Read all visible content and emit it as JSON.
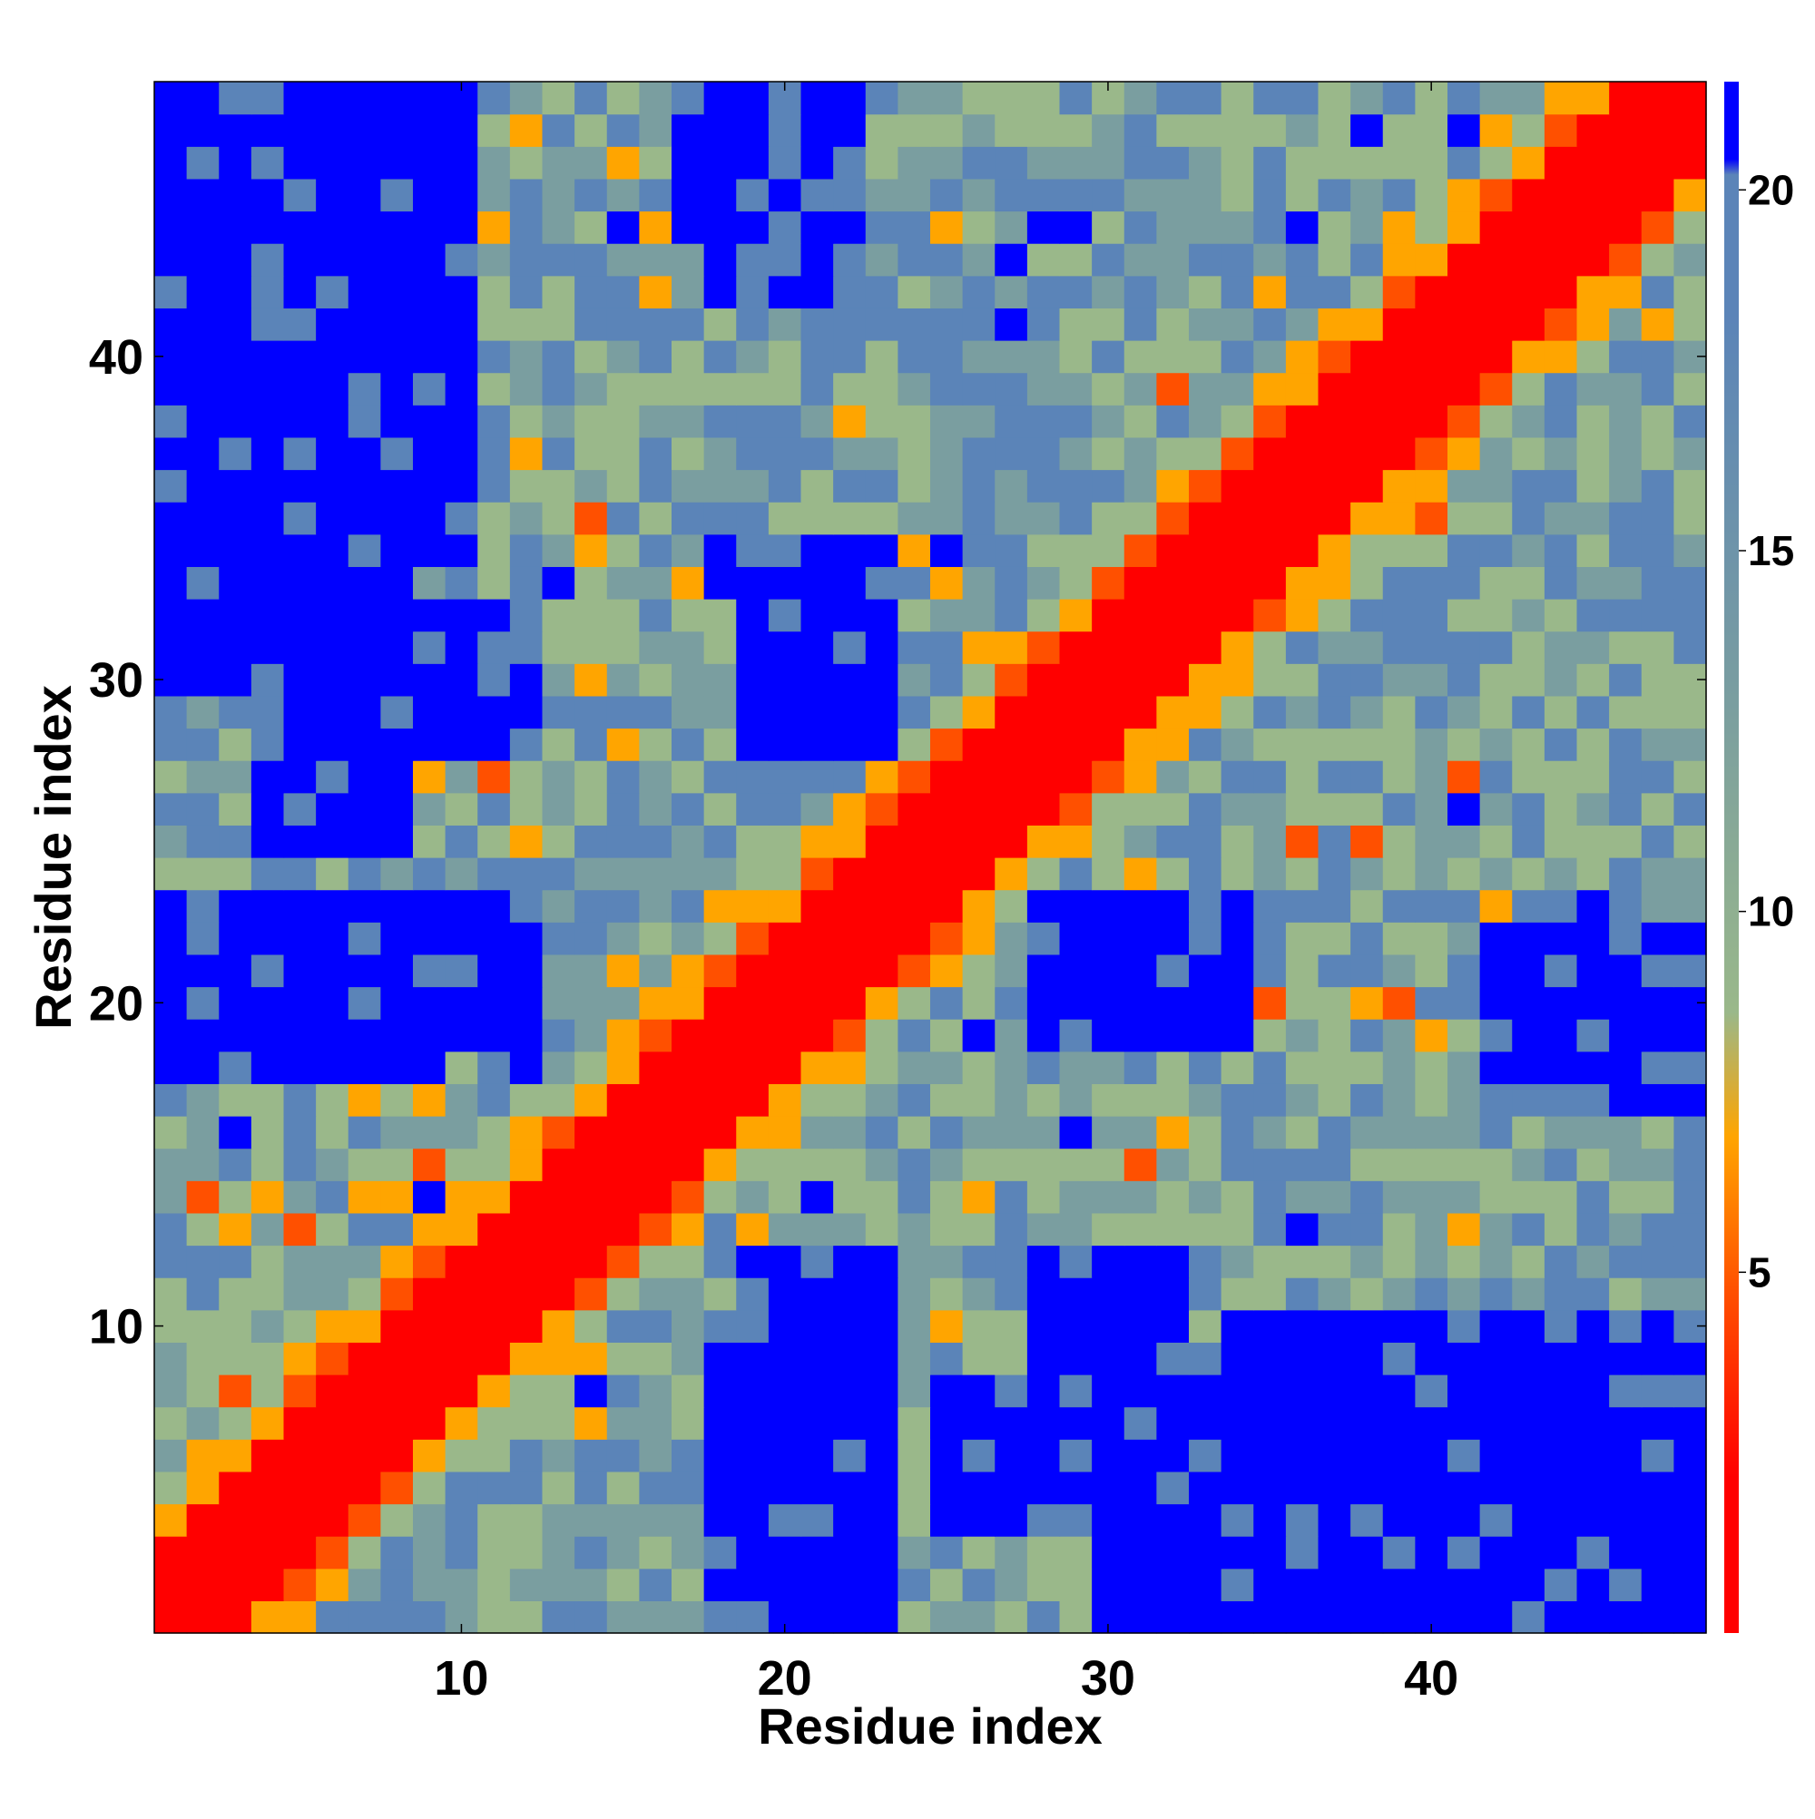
{
  "chart_data": {
    "type": "heatmap",
    "description_free": true,
    "xlabel": "Residue index",
    "ylabel": "Residue index",
    "x_range": [
      1,
      48
    ],
    "y_range": [
      1,
      48
    ],
    "x_ticks": [
      10,
      20,
      30,
      40
    ],
    "y_ticks": [
      10,
      20,
      30,
      40
    ],
    "colorbar": {
      "ticks": [
        5,
        10,
        15,
        20
      ],
      "min": 0,
      "max": 21.5,
      "colors": {
        "near": "#ff0000",
        "close": "#ff5000",
        "mid": "#ffa500",
        "far_light": "#9ab88a",
        "far_mid": "#7a9ea0",
        "far_blue": "#5b84b8",
        "very_far": "#0000ff"
      }
    },
    "n_residues": 48,
    "distance_matrix_note": "",
    "contact_map": {
      "grid_size": 48,
      "value_scale": "distance"
    }
  }
}
